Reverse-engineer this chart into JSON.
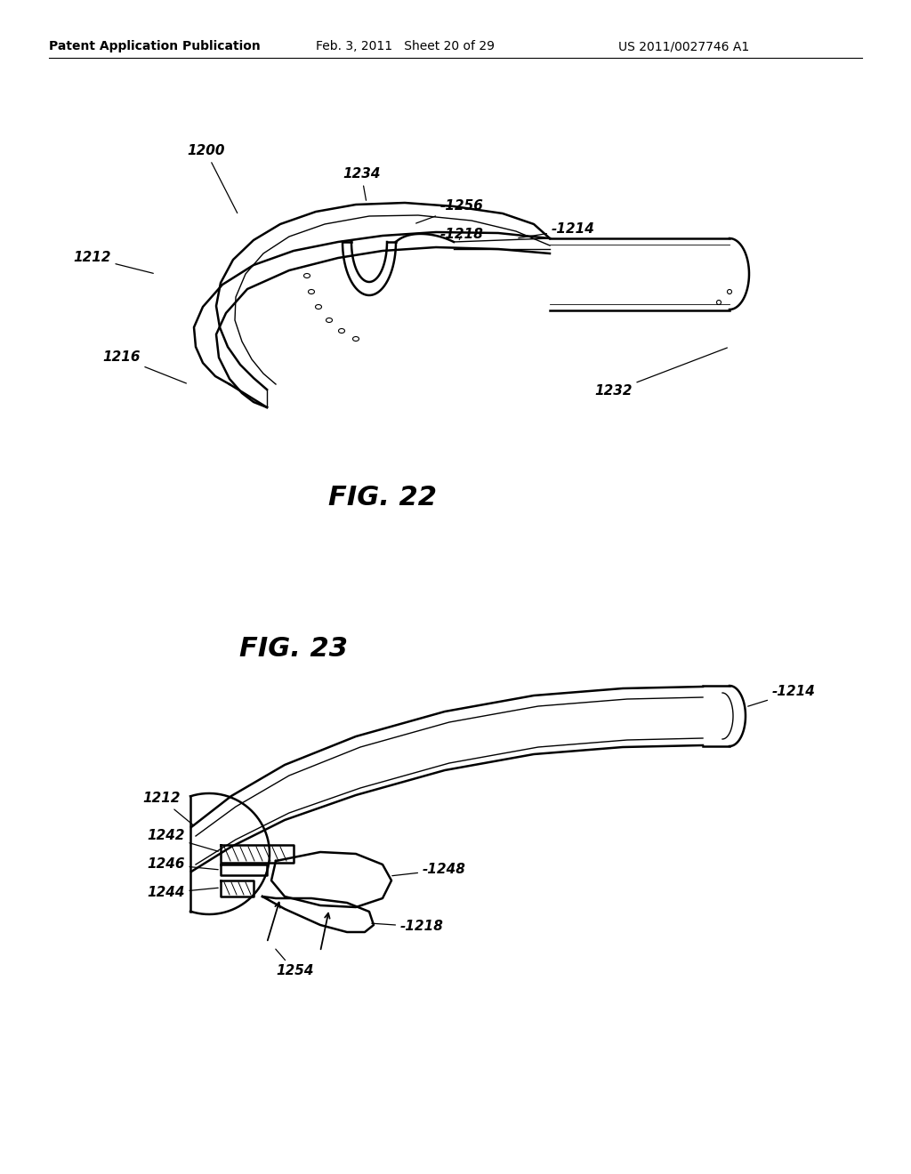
{
  "bg_color": "#ffffff",
  "line_color": "#000000",
  "header_left": "Patent Application Publication",
  "header_mid": "Feb. 3, 2011   Sheet 20 of 29",
  "header_right": "US 2011/0027746 A1",
  "fig22_title": "FIG. 22",
  "fig23_title": "FIG. 23",
  "lw_main": 1.8,
  "lw_thin": 1.0,
  "lw_thick": 2.2
}
